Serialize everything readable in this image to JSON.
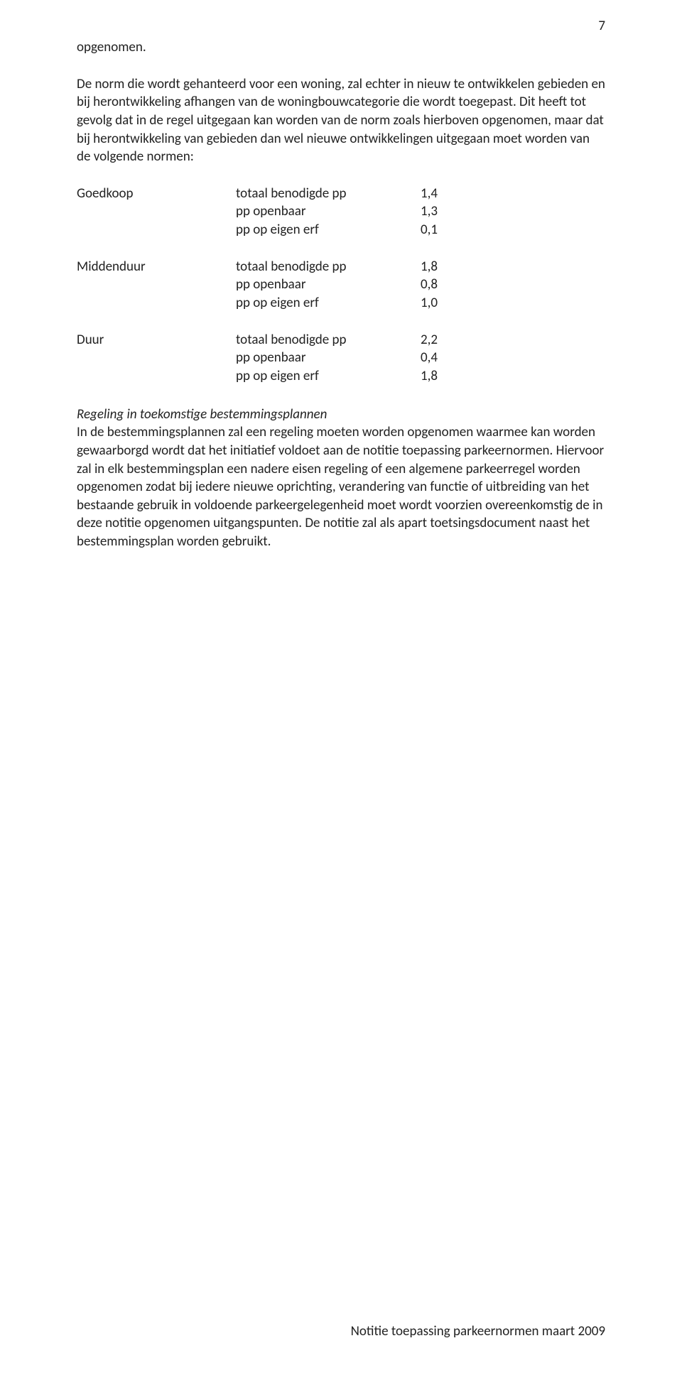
{
  "page_number": "7",
  "intro_word": "opgenomen.",
  "para1": "De norm die wordt gehanteerd voor een woning, zal echter in nieuw te ontwikkelen gebieden en bij herontwikkeling afhangen van de woningbouwcategorie die wordt toegepast. Dit heeft tot gevolg dat in de regel uitgegaan kan worden van de norm zoals hierboven opgenomen, maar dat bij herontwikkeling van gebieden dan wel nieuwe ontwikkelingen uitgegaan moet worden van de volgende normen:",
  "norms": [
    {
      "category": "Goedkoop",
      "rows": [
        {
          "label": "totaal benodigde pp",
          "value": "1,4"
        },
        {
          "label": "pp openbaar",
          "value": "1,3"
        },
        {
          "label": "pp op eigen erf",
          "value": "0,1"
        }
      ]
    },
    {
      "category": "Middenduur",
      "rows": [
        {
          "label": "totaal benodigde pp",
          "value": "1,8"
        },
        {
          "label": "pp openbaar",
          "value": "0,8"
        },
        {
          "label": "pp op eigen erf",
          "value": "1,0"
        }
      ]
    },
    {
      "category": "Duur",
      "rows": [
        {
          "label": "totaal benodigde pp",
          "value": "2,2"
        },
        {
          "label": "pp openbaar",
          "value": "0,4"
        },
        {
          "label": "pp op eigen erf",
          "value": "1,8"
        }
      ]
    }
  ],
  "section_heading": "Regeling in toekomstige bestemmingsplannen",
  "para2": "In de bestemmingsplannen zal een regeling moeten worden opgenomen waarmee kan worden gewaarborgd wordt dat het initiatief voldoet aan de notitie toepassing parkeernormen. Hiervoor zal in elk bestemmingsplan een nadere eisen regeling of een algemene parkeerregel worden opgenomen zodat bij iedere nieuwe oprichting, verandering van functie of uitbreiding van het bestaande gebruik in voldoende parkeergelegenheid moet wordt voorzien overeenkomstig de in deze notitie opgenomen uitgangspunten. De notitie zal als apart toetsingsdocument naast het bestemmingsplan worden gebruikt.",
  "footer": "Notitie toepassing parkeernormen maart 2009"
}
